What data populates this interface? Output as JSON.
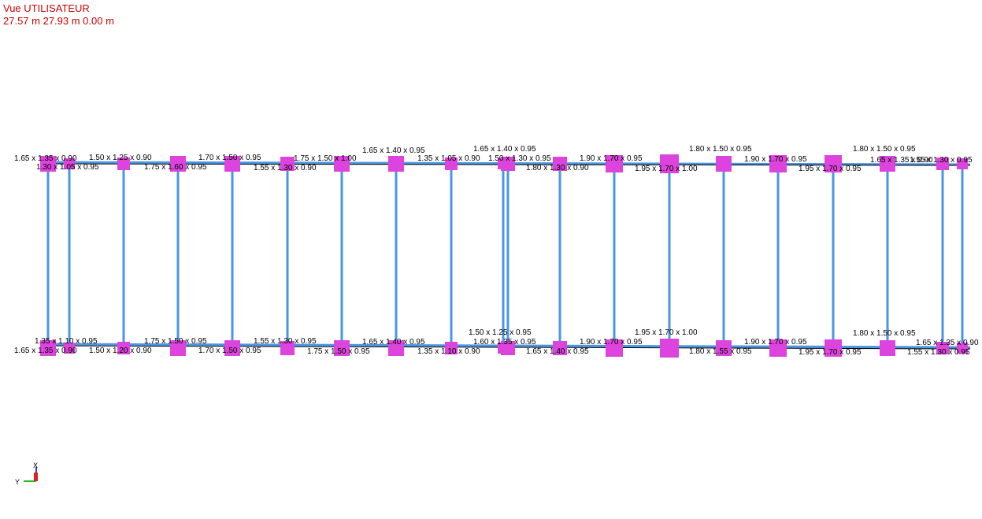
{
  "header": {
    "view": "Vue UTILISATEUR",
    "coords": "27.57 m  27.93 m  0.00 m"
  },
  "top_labels": [
    "1.65 x 1.35 x 0.90",
    "1.30 x 1.05 x 0.95",
    "1.50 x 1.25 x 0.90",
    "1.75 x 1.60 x 0.95",
    "1.70 x 1.50 x 0.95",
    "1.55 x 1.30 x 0.90",
    "1.75 x 1.50 x 1.00",
    "1.65 x 1.40 x 0.95",
    "1.35 x 1.05 x 0.90",
    "1.65 x 1.40 x 0.95",
    "1.50 x 1.30 x 0.95",
    "1.80 x 1.30 x 0.90",
    "1.90 x 1.70 x 0.95",
    "1.95 x 1.70 x 1.00",
    "1.80 x 1.50 x 0.95",
    "1.90 x 1.70 x 0.95",
    "1.95 x 1.70 x 0.95",
    "1.80 x 1.50 x 0.95",
    "1.65 x 1.35 x 0.90",
    "1.55 x 1.30 x 0.95"
  ],
  "bottom_labels": [
    "1.35 x 1.10 x 0.95",
    "1.65 x 1.35 x 0.90",
    "1.50 x 1.20 x 0.90",
    "1.75 x 1.50 x 0.95",
    "1.70 x 1.50 x 0.95",
    "1.55 x 1.30 x 0.95",
    "1.75 x 1.50 x 0.95",
    "1.65 x 1.40 x 0.95",
    "1.35 x 1.10 x 0.90",
    "1.50 x 1.25 x 0.95",
    "1.60 x 1.35 x 0.95",
    "1.65 x 1.40 x 0.95",
    "1.90 x 1.70 x 0.95",
    "1.95 x 1.70 x 1.00",
    "1.80 x 1.55 x 0.95",
    "1.90 x 1.70 x 0.95",
    "1.95 x 1.70 x 0.95",
    "1.80 x 1.50 x 0.95",
    "1.65 x 1.35 x 0.90",
    "1.55 x 1.30 x 0.95"
  ],
  "axes": {
    "x": "X",
    "y": "Y"
  }
}
